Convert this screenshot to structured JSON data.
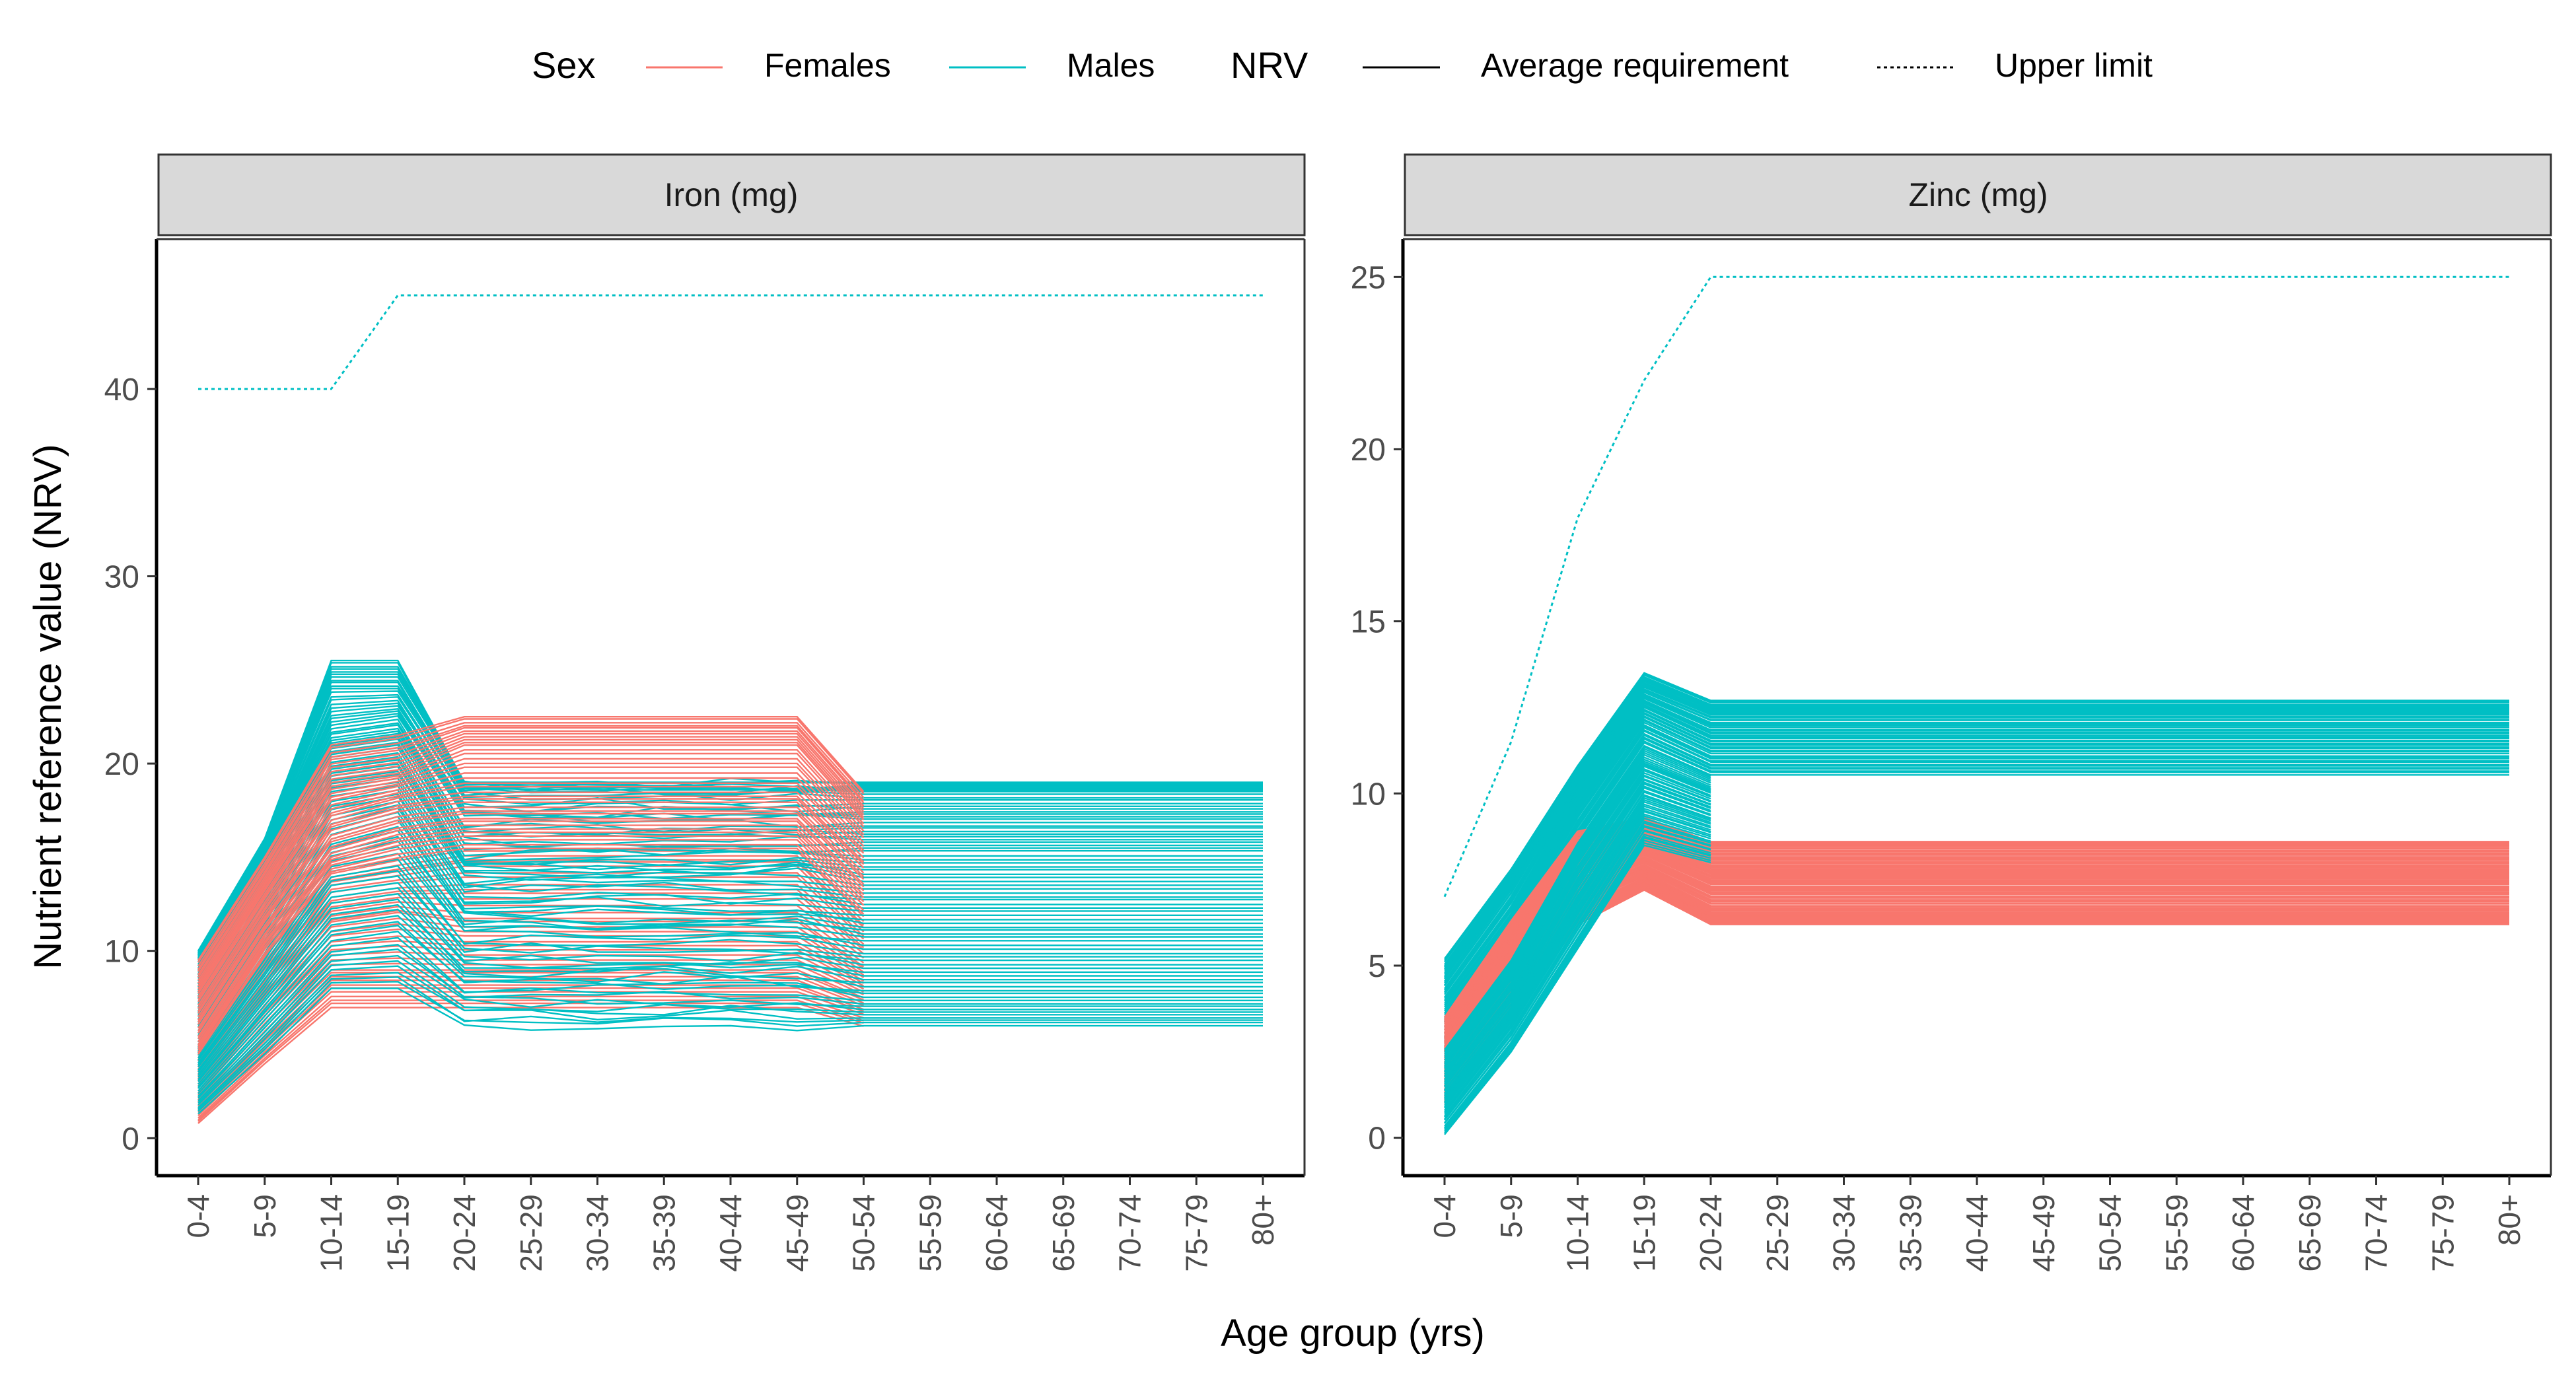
{
  "chart_data": {
    "type": "line",
    "xlabel": "Age group (yrs)",
    "ylabel": "Nutrient reference value (NRV)",
    "categories": [
      "0-4",
      "5-9",
      "10-14",
      "15-19",
      "20-24",
      "25-29",
      "30-34",
      "35-39",
      "40-44",
      "45-49",
      "50-54",
      "55-59",
      "60-64",
      "65-69",
      "70-74",
      "75-79",
      "80+"
    ],
    "legend": {
      "position": "top",
      "sex_title": "Sex",
      "sex_entries": [
        {
          "label": "Females",
          "color": "#F8766D"
        },
        {
          "label": "Males",
          "color": "#00BFC4"
        }
      ],
      "nrv_title": "NRV",
      "nrv_entries": [
        {
          "label": "Average requirement",
          "linetype": "solid"
        },
        {
          "label": "Upper limit",
          "linetype": "dotted"
        }
      ]
    },
    "panels": [
      {
        "title": "Iron (mg)",
        "ylim": [
          -2,
          48
        ],
        "yticks": [
          0,
          10,
          20,
          30,
          40
        ],
        "upper_limit": {
          "sex": "Males",
          "values": [
            40,
            40,
            40,
            45,
            45,
            45,
            45,
            45,
            45,
            45,
            45,
            45,
            45,
            45,
            45,
            45,
            45
          ]
        },
        "female_profiles": [
          {
            "v0_4": 0.8,
            "v5_9": 4.0,
            "v10_14": 7.0,
            "v15_19": 7.0,
            "adult": 7.0,
            "post50": 6.0
          },
          {
            "v0_4": 1.8,
            "v5_9": 5.5,
            "v10_14": 9.0,
            "v15_19": 9.0,
            "adult": 9.0,
            "post50": 7.5
          },
          {
            "v0_4": 3.0,
            "v5_9": 7.5,
            "v10_14": 11.5,
            "v15_19": 12.0,
            "adult": 11.5,
            "post50": 9.0
          },
          {
            "v0_4": 4.0,
            "v5_9": 9.0,
            "v10_14": 13.5,
            "v15_19": 14.0,
            "adult": 14.5,
            "post50": 11.0
          },
          {
            "v0_4": 5.0,
            "v5_9": 10.5,
            "v10_14": 15.0,
            "v15_19": 16.0,
            "adult": 16.5,
            "post50": 13.0
          },
          {
            "v0_4": 6.5,
            "v5_9": 12.0,
            "v10_14": 17.0,
            "v15_19": 18.0,
            "adult": 18.5,
            "post50": 15.0
          },
          {
            "v0_4": 8.0,
            "v5_9": 13.5,
            "v10_14": 19.0,
            "v15_19": 19.5,
            "adult": 21.0,
            "post50": 17.0
          },
          {
            "v0_4": 9.5,
            "v5_9": 15.0,
            "v10_14": 21.0,
            "v15_19": 21.5,
            "adult": 22.5,
            "post50": 18.5
          }
        ],
        "male_profiles": [
          {
            "v0_4": 1.3,
            "v5_9": 4.5,
            "v10_14": 8.0,
            "v15_19": 8.0,
            "adult": 6.0,
            "post50": 6.0
          },
          {
            "v0_4": 2.5,
            "v5_9": 6.5,
            "v10_14": 10.5,
            "v15_19": 11.0,
            "adult": 8.0,
            "post50": 7.5
          },
          {
            "v0_4": 3.8,
            "v5_9": 8.5,
            "v10_14": 13.5,
            "v15_19": 14.0,
            "adult": 10.0,
            "post50": 9.5
          },
          {
            "v0_4": 5.0,
            "v5_9": 10.5,
            "v10_14": 16.0,
            "v15_19": 17.0,
            "adult": 12.0,
            "post50": 11.5
          },
          {
            "v0_4": 6.5,
            "v5_9": 12.0,
            "v10_14": 18.5,
            "v15_19": 19.0,
            "adult": 14.0,
            "post50": 13.5
          },
          {
            "v0_4": 7.5,
            "v5_9": 13.5,
            "v10_14": 20.5,
            "v15_19": 21.0,
            "adult": 15.5,
            "post50": 15.5
          },
          {
            "v0_4": 8.5,
            "v5_9": 14.5,
            "v10_14": 22.0,
            "v15_19": 22.5,
            "adult": 17.0,
            "post50": 17.0
          },
          {
            "v0_4": 9.5,
            "v5_9": 15.5,
            "v10_14": 24.0,
            "v15_19": 24.0,
            "adult": 18.5,
            "post50": 18.5
          },
          {
            "v0_4": 10.0,
            "v5_9": 16.0,
            "v10_14": 25.5,
            "v15_19": 25.5,
            "adult": 19.0,
            "post50": 19.0
          }
        ]
      },
      {
        "title": "Zinc (mg)",
        "ylim": [
          -1.1,
          26.1
        ],
        "yticks": [
          0,
          5,
          10,
          15,
          20,
          25
        ],
        "upper_limit": {
          "sex": "Males",
          "values": [
            7,
            11.5,
            18,
            22,
            25,
            25,
            25,
            25,
            25,
            25,
            25,
            25,
            25,
            25,
            25,
            25,
            25
          ]
        },
        "female_profiles": [
          {
            "v0_4": 1.0,
            "v5_9": 3.5,
            "v10_14": 6.2,
            "v15_19": 7.2,
            "adult": 6.2
          },
          {
            "v0_4": 1.5,
            "v5_9": 4.0,
            "v10_14": 6.8,
            "v15_19": 7.6,
            "adult": 6.6
          },
          {
            "v0_4": 2.0,
            "v5_9": 4.6,
            "v10_14": 7.3,
            "v15_19": 8.0,
            "adult": 7.1
          },
          {
            "v0_4": 2.5,
            "v5_9": 5.2,
            "v10_14": 7.9,
            "v15_19": 8.4,
            "adult": 7.6
          },
          {
            "v0_4": 3.0,
            "v5_9": 5.8,
            "v10_14": 8.4,
            "v15_19": 8.8,
            "adult": 8.1
          },
          {
            "v0_4": 3.5,
            "v5_9": 6.3,
            "v10_14": 8.9,
            "v15_19": 9.3,
            "adult": 8.6
          }
        ],
        "male_profiles": [
          {
            "v0_4": 0.1,
            "v5_9": 2.5,
            "v10_14": 5.5,
            "v15_19": 8.5,
            "adult": 8.0
          },
          {
            "v0_4": 0.8,
            "v5_9": 3.3,
            "v10_14": 6.4,
            "v15_19": 9.4,
            "adult": 8.8
          },
          {
            "v0_4": 1.5,
            "v5_9": 4.0,
            "v10_14": 7.3,
            "v15_19": 10.2,
            "adult": 9.5
          },
          {
            "v0_4": 2.2,
            "v5_9": 4.8,
            "v10_14": 8.2,
            "v15_19": 11.0,
            "adult": 10.2
          },
          {
            "v0_4": 3.0,
            "v5_9": 5.6,
            "v10_14": 9.0,
            "v15_19": 11.8,
            "adult": 10.9
          },
          {
            "v0_4": 3.8,
            "v5_9": 6.4,
            "v10_14": 9.8,
            "v15_19": 12.5,
            "adult": 11.6
          },
          {
            "v0_4": 4.5,
            "v5_9": 7.2,
            "v10_14": 10.4,
            "v15_19": 13.0,
            "adult": 12.2
          },
          {
            "v0_4": 5.2,
            "v5_9": 7.8,
            "v10_14": 10.8,
            "v15_19": 13.5,
            "adult": 12.7
          }
        ]
      }
    ]
  }
}
